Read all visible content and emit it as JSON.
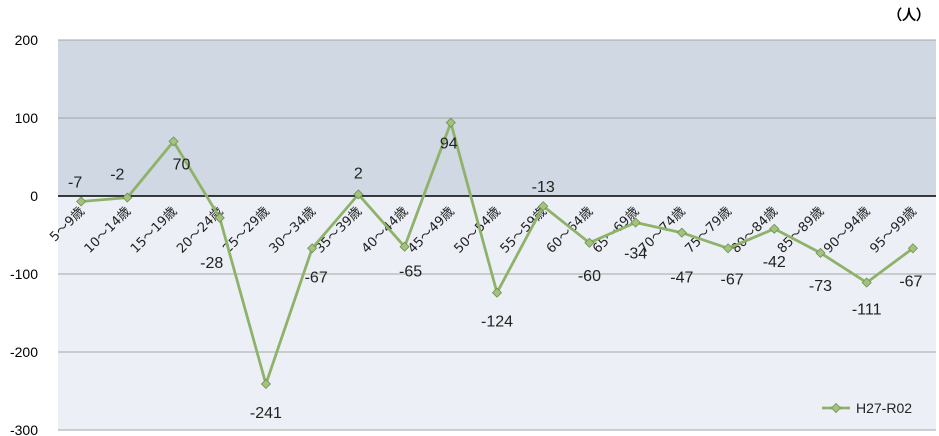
{
  "chart_data": {
    "type": "line",
    "unit_label": "（人）",
    "categories": [
      "5～9歳",
      "10～14歳",
      "15～19歳",
      "20～24歳",
      "25～29歳",
      "30～34歳",
      "35～39歳",
      "40～44歳",
      "45～49歳",
      "50～54歳",
      "55～59歳",
      "60～64歳",
      "65～69歳",
      "70～74歳",
      "75～79歳",
      "80～84歳",
      "85～89歳",
      "90～94歳",
      "95～99歳"
    ],
    "series": [
      {
        "name": "H27-R02",
        "color": "#8fb26a",
        "values": [
          -7,
          -2,
          70,
          -28,
          -241,
          -67,
          2,
          -65,
          94,
          -124,
          -13,
          -60,
          -34,
          -47,
          -67,
          -42,
          -73,
          -111,
          -67
        ]
      }
    ],
    "ylim": [
      -300,
      200
    ],
    "yticks": [
      200,
      100,
      0,
      -100,
      -200,
      -300
    ],
    "grid": true,
    "legend_position": "bottom-right",
    "colors": {
      "positive_band": "#d0d8e3",
      "negative_band": "#ecf0f6",
      "grid": "#a6a6a6",
      "zero_line": "#000000",
      "marker": "#a4c27f"
    }
  }
}
